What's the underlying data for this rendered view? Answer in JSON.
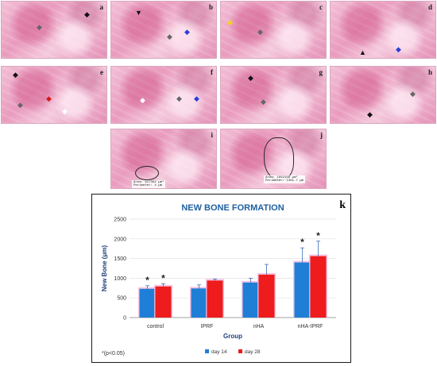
{
  "panels": [
    {
      "id": "a",
      "label": "a"
    },
    {
      "id": "b",
      "label": "b"
    },
    {
      "id": "c",
      "label": "c"
    },
    {
      "id": "d",
      "label": "d"
    },
    {
      "id": "e",
      "label": "e"
    },
    {
      "id": "f",
      "label": "f"
    },
    {
      "id": "g",
      "label": "g"
    },
    {
      "id": "h",
      "label": "h"
    },
    {
      "id": "i",
      "label": "i",
      "caption_lines": [
        "Area: 917392 µm²",
        "Perimeter: 4 µm"
      ]
    },
    {
      "id": "j",
      "label": "j",
      "caption_lines": [
        "Area: 1992156 µm²",
        "Perimeter: 1381.7 µm"
      ]
    }
  ],
  "chart_label": "k",
  "significance_note": "*(p<0.05)",
  "colors": {
    "day14": "#1f7fd6",
    "day28": "#ee1c1c",
    "halo": "#f4b9df",
    "title": "#1f5f9f"
  },
  "chart_data": {
    "type": "bar",
    "title": "NEW BONE FORMATION",
    "xlabel": "Group",
    "ylabel": "New Bone (μm)",
    "ylim": [
      0,
      2500
    ],
    "yticks": [
      "0",
      "500",
      "1000",
      "1500",
      "2000",
      "2500"
    ],
    "grid": true,
    "legend_position": "bottom",
    "categories": [
      "control",
      "IPRF",
      "nHA",
      "nHA-IPRF"
    ],
    "series": [
      {
        "name": "day 14",
        "values": [
          730,
          740,
          890,
          1400
        ],
        "errors": [
          80,
          90,
          110,
          370
        ],
        "significant": [
          true,
          false,
          false,
          true
        ]
      },
      {
        "name": "day 28",
        "values": [
          790,
          940,
          1090,
          1560
        ],
        "errors": [
          70,
          40,
          260,
          380
        ],
        "significant": [
          true,
          false,
          false,
          true
        ]
      }
    ]
  }
}
